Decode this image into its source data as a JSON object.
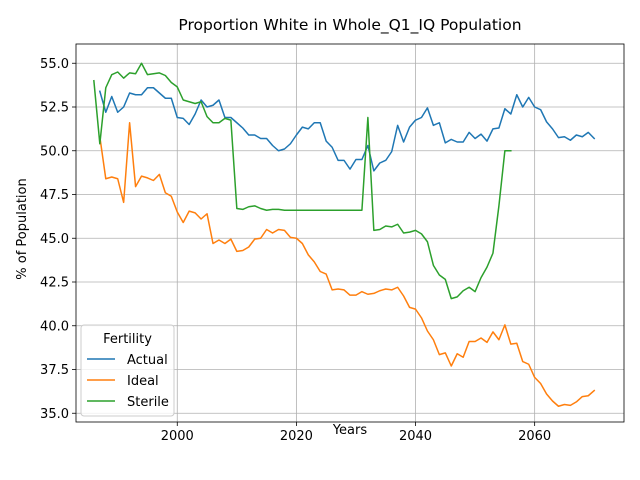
{
  "chart_data": {
    "type": "line",
    "title": "Proportion White in Whole_Q1_IQ Population",
    "xlabel": "Years",
    "ylabel": "% of Population",
    "xlim": [
      1983,
      2075
    ],
    "ylim": [
      34.5,
      56.1
    ],
    "xticks": [
      2000,
      2020,
      2040,
      2060
    ],
    "yticks": [
      35.0,
      37.5,
      40.0,
      42.5,
      45.0,
      47.5,
      50.0,
      52.5,
      55.0
    ],
    "ytick_labels": [
      "35.0",
      "37.5",
      "40.0",
      "42.5",
      "45.0",
      "47.5",
      "50.0",
      "52.5",
      "55.0"
    ],
    "grid": true,
    "legend": {
      "title": "Fertility",
      "position": "bottom-left"
    },
    "series": [
      {
        "name": "Actual",
        "color": "#1f77b4",
        "x": [
          1987,
          1988,
          1989,
          1990,
          1991,
          1992,
          1993,
          1994,
          1995,
          1996,
          1997,
          1998,
          1999,
          2000,
          2001,
          2002,
          2003,
          2004,
          2005,
          2006,
          2007,
          2008,
          2009,
          2010,
          2011,
          2012,
          2013,
          2014,
          2015,
          2016,
          2017,
          2018,
          2019,
          2020,
          2021,
          2022,
          2023,
          2024,
          2025,
          2026,
          2027,
          2028,
          2029,
          2030,
          2031,
          2032,
          2033,
          2034,
          2035,
          2036,
          2037,
          2038,
          2039,
          2040,
          2041,
          2042,
          2043,
          2044,
          2045,
          2046,
          2047,
          2048,
          2049,
          2050,
          2051,
          2052,
          2053,
          2054,
          2055,
          2056,
          2057,
          2058,
          2059,
          2060,
          2061,
          2062,
          2063,
          2064,
          2065,
          2066,
          2067,
          2068,
          2069,
          2070
        ],
        "values": [
          53.4,
          52.2,
          53.1,
          52.2,
          52.5,
          53.3,
          53.2,
          53.2,
          53.6,
          53.6,
          53.3,
          53.0,
          53.0,
          51.9,
          51.85,
          51.5,
          52.1,
          52.9,
          52.5,
          52.6,
          52.9,
          51.9,
          51.9,
          51.6,
          51.3,
          50.9,
          50.9,
          50.7,
          50.7,
          50.3,
          50.0,
          50.1,
          50.4,
          50.9,
          51.35,
          51.25,
          51.6,
          51.6,
          50.55,
          50.2,
          49.45,
          49.45,
          48.95,
          49.5,
          49.5,
          50.3,
          48.85,
          49.3,
          49.45,
          49.95,
          51.45,
          50.5,
          51.35,
          51.75,
          51.9,
          52.45,
          51.45,
          51.6,
          50.45,
          50.65,
          50.5,
          50.5,
          51.05,
          50.7,
          50.95,
          50.55,
          51.25,
          51.3,
          52.4,
          52.1,
          53.2,
          52.5,
          53.05,
          52.5,
          52.35,
          51.65,
          51.25,
          50.75,
          50.8,
          50.6,
          50.9,
          50.8,
          51.05,
          50.7
        ]
      },
      {
        "name": "Ideal",
        "color": "#ff7f0e",
        "x": [
          1987,
          1988,
          1989,
          1990,
          1991,
          1992,
          1993,
          1994,
          1995,
          1996,
          1997,
          1998,
          1999,
          2000,
          2001,
          2002,
          2003,
          2004,
          2005,
          2006,
          2007,
          2008,
          2009,
          2010,
          2011,
          2012,
          2013,
          2014,
          2015,
          2016,
          2017,
          2018,
          2019,
          2020,
          2021,
          2022,
          2023,
          2024,
          2025,
          2026,
          2027,
          2028,
          2029,
          2030,
          2031,
          2032,
          2033,
          2034,
          2035,
          2036,
          2037,
          2038,
          2039,
          2040,
          2041,
          2042,
          2043,
          2044,
          2045,
          2046,
          2047,
          2048,
          2049,
          2050,
          2051,
          2052,
          2053,
          2054,
          2055,
          2056,
          2057,
          2058,
          2059,
          2060,
          2061,
          2062,
          2063,
          2064,
          2065,
          2066,
          2067,
          2068,
          2069,
          2070
        ],
        "values": [
          50.8,
          48.4,
          48.5,
          48.4,
          47.05,
          51.6,
          47.95,
          48.55,
          48.45,
          48.3,
          48.65,
          47.6,
          47.4,
          46.5,
          45.9,
          46.55,
          46.45,
          46.1,
          46.4,
          44.7,
          44.9,
          44.7,
          44.95,
          44.25,
          44.3,
          44.5,
          44.95,
          45.0,
          45.5,
          45.3,
          45.5,
          45.45,
          45.05,
          45.0,
          44.7,
          44.05,
          43.65,
          43.1,
          42.95,
          42.05,
          42.1,
          42.05,
          41.75,
          41.75,
          41.95,
          41.8,
          41.85,
          42.0,
          42.1,
          42.05,
          42.2,
          41.7,
          41.05,
          40.95,
          40.45,
          39.7,
          39.2,
          38.35,
          38.45,
          37.7,
          38.4,
          38.2,
          39.1,
          39.1,
          39.3,
          39.05,
          39.65,
          39.2,
          40.05,
          38.95,
          39.0,
          37.95,
          37.8,
          37.05,
          36.7,
          36.1,
          35.7,
          35.4,
          35.5,
          35.45,
          35.65,
          35.95,
          36.0,
          36.3
        ]
      },
      {
        "name": "Sterile",
        "color": "#2ca02c",
        "x": [
          1986,
          1987,
          1988,
          1989,
          1990,
          1991,
          1992,
          1993,
          1994,
          1995,
          1996,
          1997,
          1998,
          1999,
          2000,
          2001,
          2002,
          2003,
          2004,
          2005,
          2006,
          2007,
          2008,
          2009,
          2010,
          2011,
          2012,
          2013,
          2014,
          2015,
          2016,
          2017,
          2018,
          2019,
          2020,
          2021,
          2022,
          2023,
          2024,
          2025,
          2026,
          2027,
          2028,
          2029,
          2030,
          2031,
          2032,
          2033,
          2034,
          2035,
          2036,
          2037,
          2038,
          2039,
          2040,
          2041,
          2042,
          2043,
          2044,
          2045,
          2046,
          2047,
          2048,
          2049,
          2050,
          2051,
          2052,
          2053,
          2054,
          2055,
          2056
        ],
        "values": [
          54.0,
          50.4,
          53.6,
          54.35,
          54.5,
          54.15,
          54.45,
          54.4,
          55.0,
          54.35,
          54.4,
          54.45,
          54.3,
          53.9,
          53.65,
          52.9,
          52.8,
          52.7,
          52.8,
          51.95,
          51.6,
          51.6,
          51.85,
          51.75,
          46.7,
          46.65,
          46.8,
          46.85,
          46.7,
          46.6,
          46.65,
          46.65,
          46.6,
          46.6,
          46.6,
          46.6,
          46.6,
          46.6,
          46.6,
          46.6,
          46.6,
          46.6,
          46.6,
          46.6,
          46.6,
          46.6,
          51.9,
          45.45,
          45.5,
          45.7,
          45.65,
          45.8,
          45.3,
          45.35,
          45.45,
          45.25,
          44.8,
          43.45,
          42.9,
          42.65,
          41.55,
          41.65,
          42.0,
          42.2,
          41.95,
          42.75,
          43.35,
          44.15,
          46.85,
          50.0,
          50.0
        ]
      }
    ]
  }
}
